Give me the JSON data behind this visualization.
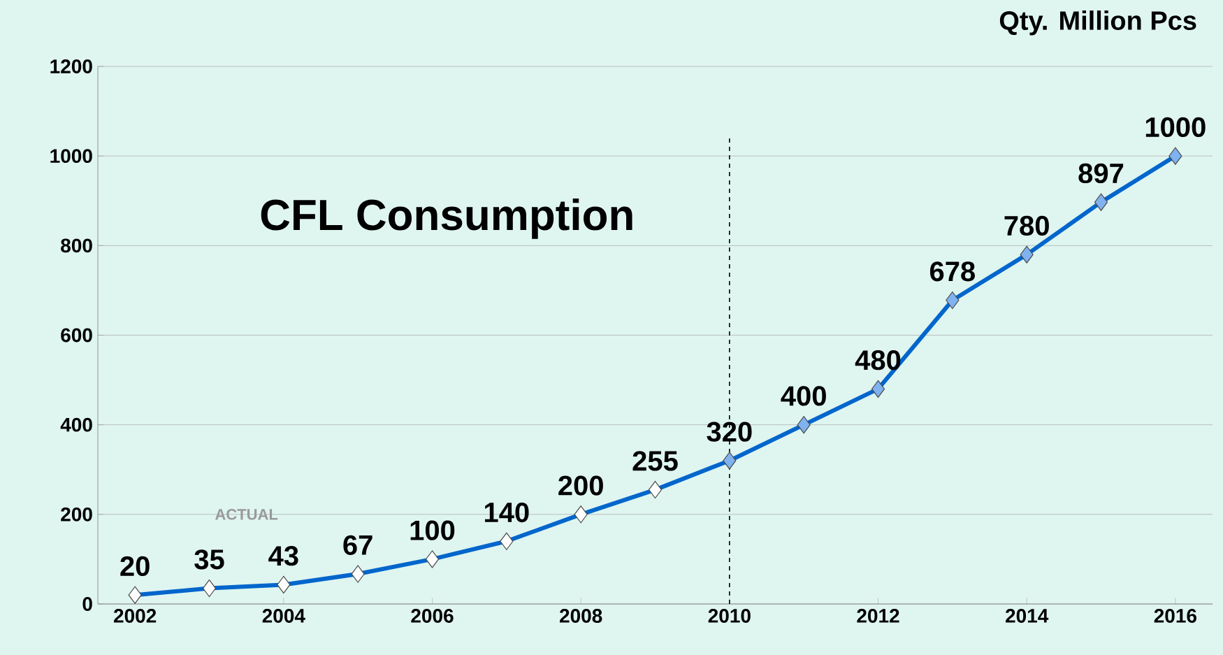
{
  "chart_data": {
    "type": "line",
    "title": "CFL Consumption",
    "ylabel": "Qty. Million Pcs",
    "x": [
      2002,
      2003,
      2004,
      2005,
      2006,
      2007,
      2008,
      2009,
      2010,
      2011,
      2012,
      2013,
      2014,
      2015,
      2016
    ],
    "values": [
      20,
      35,
      43,
      67,
      100,
      140,
      200,
      255,
      320,
      400,
      480,
      678,
      780,
      897,
      1000
    ],
    "data_labels": true,
    "color": "#0066cc",
    "colors": [
      "#ffffff",
      "#ffffff",
      "#ffffff",
      "#ffffff",
      "#ffffff",
      "#ffffff",
      "#ffffff",
      "#ffffff",
      "#7fb2ef",
      "#7fb2ef",
      "#7fb2ef",
      "#7fb2ef",
      "#7fb2ef",
      "#7fb2ef",
      "#7fb2ef"
    ],
    "xlim": [
      2001.5,
      2016.5
    ],
    "xticks": [
      2002,
      2004,
      2006,
      2008,
      2010,
      2012,
      2014,
      2016
    ],
    "ylim": [
      0,
      1200
    ],
    "yticks": [
      0,
      200,
      400,
      600,
      800,
      1000,
      1200
    ],
    "grid": "y",
    "marker": "diamond",
    "line_style": "solid",
    "ref_lines": [
      {
        "axis": "x",
        "value": 2010,
        "color": "#000000",
        "line_style": "dashed"
      }
    ],
    "annotations": [
      "ACTUAL"
    ]
  }
}
